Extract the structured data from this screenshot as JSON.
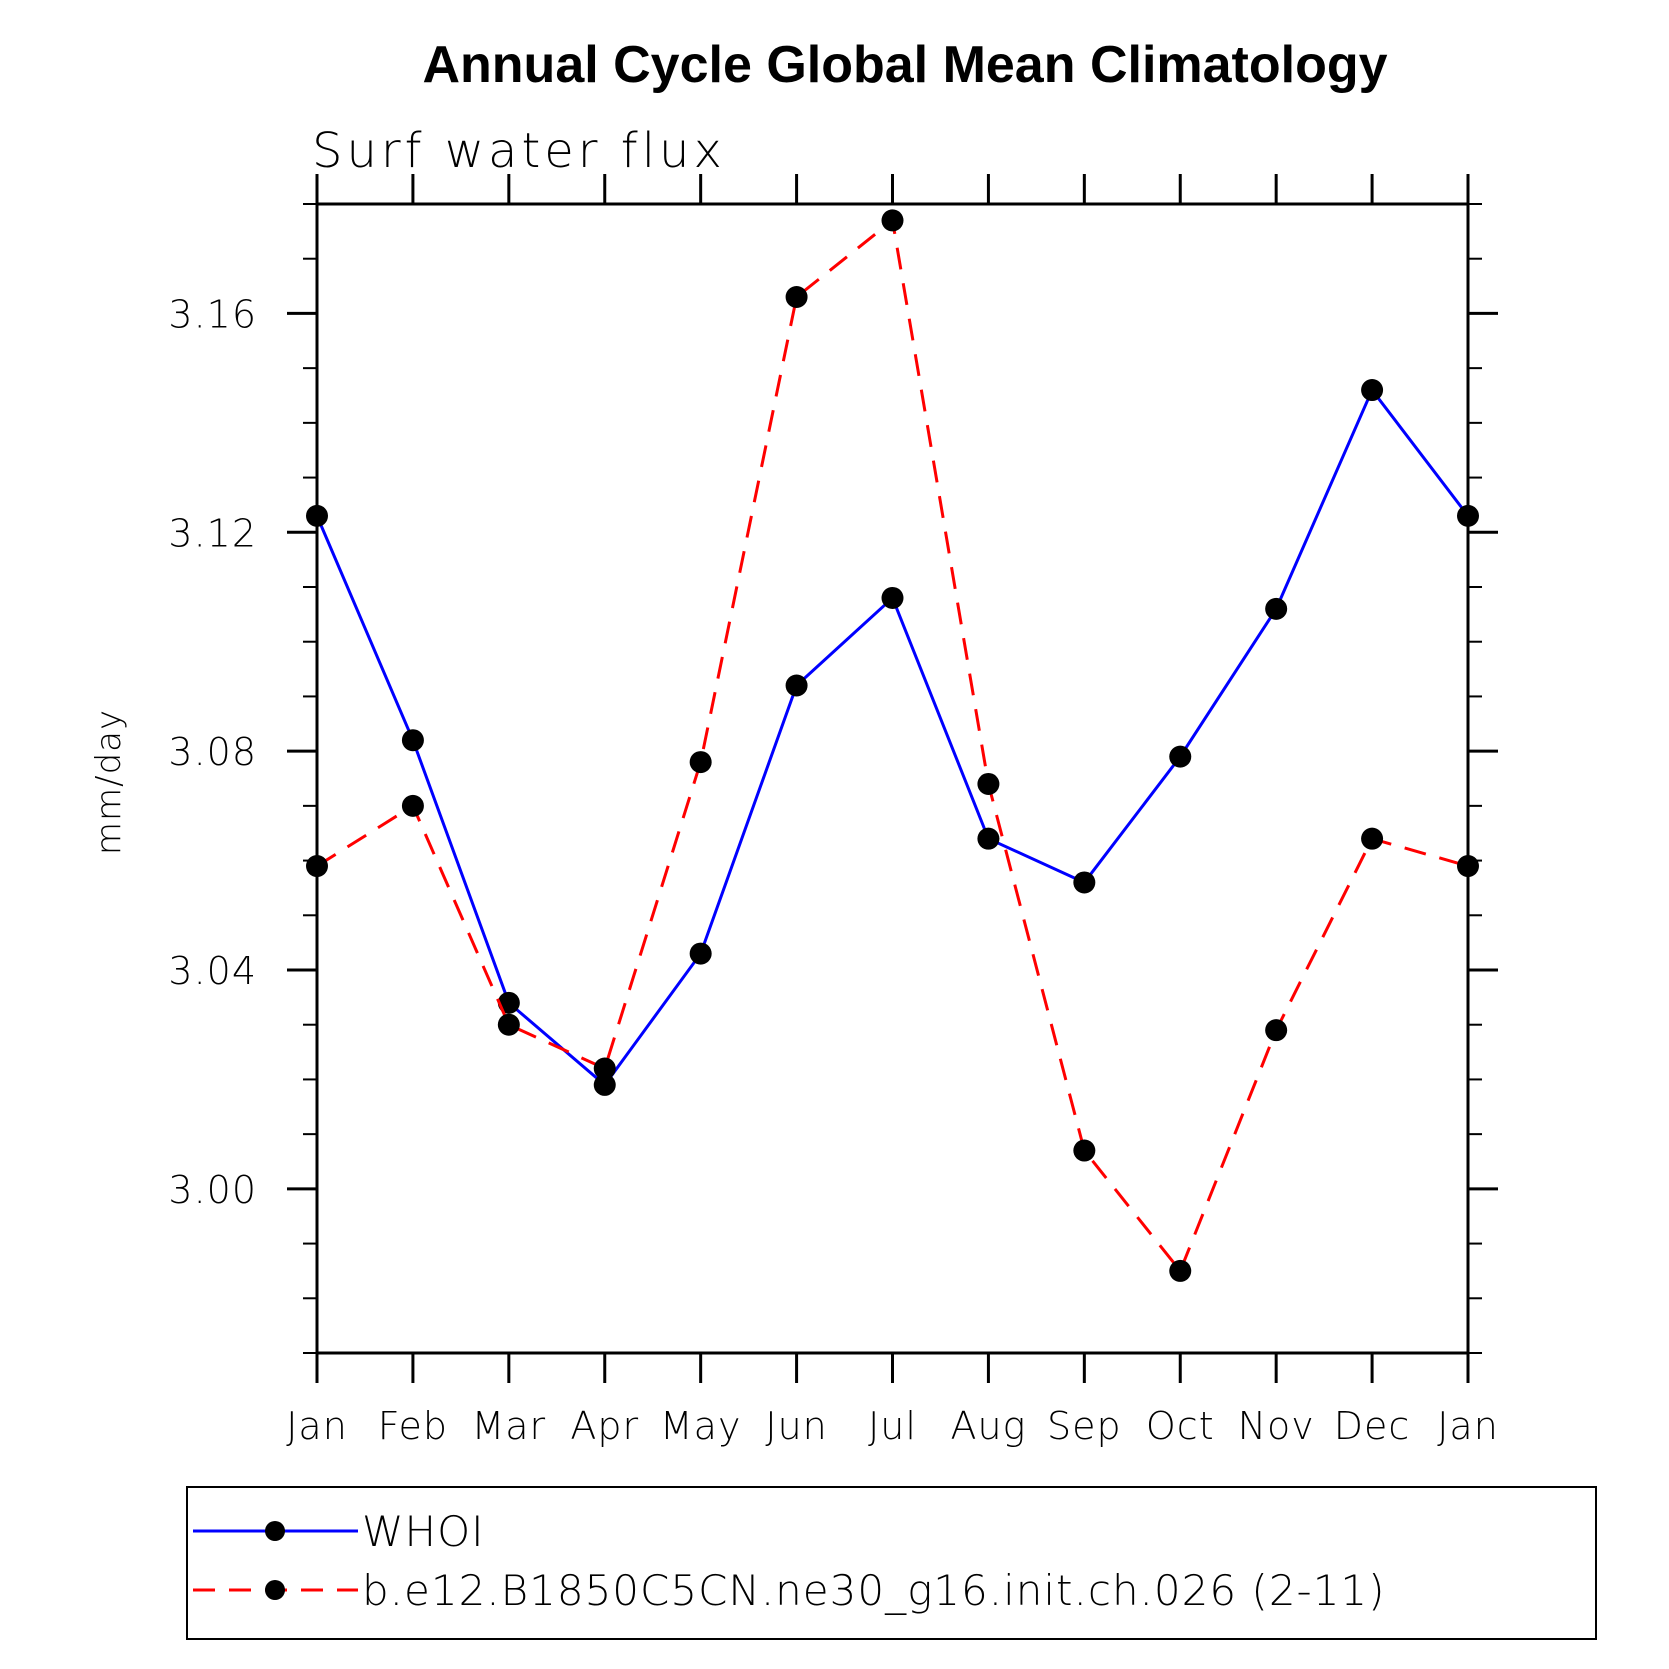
{
  "chart_data": {
    "type": "line",
    "title": "Annual Cycle Global Mean Climatology",
    "subtitle": "Surf water flux",
    "xlabel": "",
    "ylabel": "mm/day",
    "categories": [
      "Jan",
      "Feb",
      "Mar",
      "Apr",
      "May",
      "Jun",
      "Jul",
      "Aug",
      "Sep",
      "Oct",
      "Nov",
      "Dec",
      "Jan"
    ],
    "ylim": [
      2.97,
      3.18
    ],
    "yticks": [
      3.0,
      3.04,
      3.08,
      3.12,
      3.16
    ],
    "ytick_labels": [
      "3.00",
      "3.04",
      "3.08",
      "3.12",
      "3.16"
    ],
    "grid": false,
    "legend_position": "bottom",
    "series": [
      {
        "name": "WHOI",
        "color": "#0000ff",
        "dash": "solid",
        "values": [
          3.123,
          3.082,
          3.034,
          3.019,
          3.043,
          3.092,
          3.108,
          3.064,
          3.056,
          3.079,
          3.106,
          3.146,
          3.123
        ]
      },
      {
        "name": "b.e12.B1850C5CN.ne30_g16.init.ch.026 (2-11)",
        "color": "#ff0000",
        "dash": "dashed",
        "values": [
          3.059,
          3.07,
          3.03,
          3.022,
          3.078,
          3.163,
          3.177,
          3.074,
          3.007,
          2.985,
          3.029,
          3.064,
          3.059
        ]
      }
    ]
  }
}
